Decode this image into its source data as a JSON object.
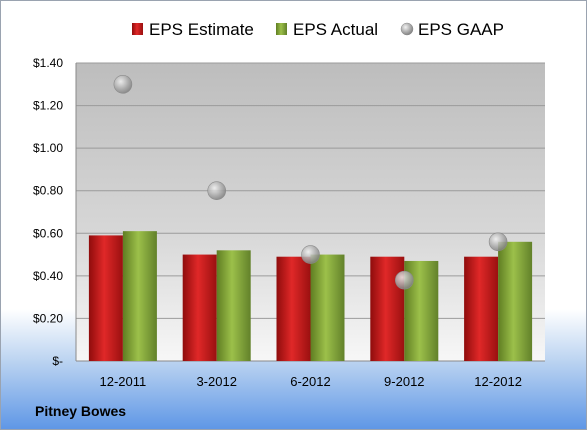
{
  "company": "Pitney Bowes",
  "chart_data": {
    "type": "bar",
    "categories": [
      "12-2011",
      "3-2012",
      "6-2012",
      "9-2012",
      "12-2012"
    ],
    "series": [
      {
        "name": "EPS Estimate",
        "kind": "bar",
        "color": "#cc1f1f",
        "values": [
          0.59,
          0.5,
          0.49,
          0.49,
          0.49
        ]
      },
      {
        "name": "EPS Actual",
        "kind": "bar",
        "color": "#86a83a",
        "values": [
          0.61,
          0.52,
          0.5,
          0.47,
          0.56
        ]
      },
      {
        "name": "EPS GAAP",
        "kind": "scatter",
        "color": "#a8a8a8",
        "values": [
          1.3,
          0.8,
          0.5,
          0.38,
          0.56
        ]
      }
    ],
    "y_ticks": [
      "$-",
      "$0.20",
      "$0.40",
      "$0.60",
      "$0.80",
      "$1.00",
      "$1.20",
      "$1.40"
    ],
    "ylim": [
      0,
      1.4
    ],
    "grid": true,
    "legend": "top"
  }
}
